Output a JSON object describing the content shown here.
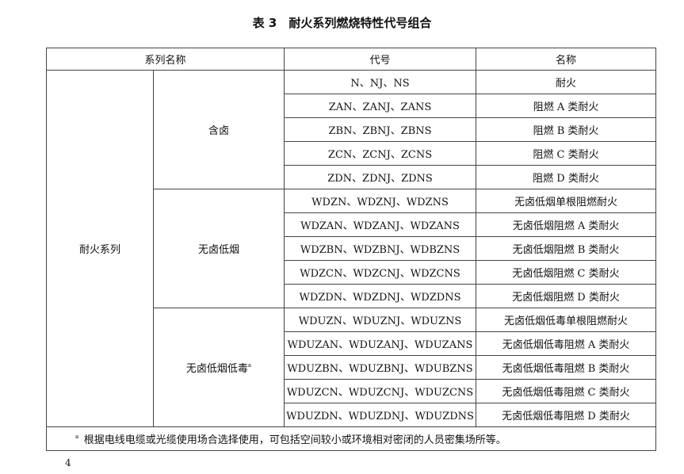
{
  "title": "表 3　耐火系列燃烧特性代号组合",
  "table": {
    "header": [
      "系列名称",
      "代号",
      "名称"
    ],
    "series_name": "耐火系列",
    "groups": [
      {
        "name": "含卤",
        "rows": [
          [
            "N、NJ、NS",
            "耐火"
          ],
          [
            "ZAN、ZANJ、ZANS",
            "阻燃 A 类耐火"
          ],
          [
            "ZBN、ZBNJ、ZBNS",
            "阻燃 B 类耐火"
          ],
          [
            "ZCN、ZCNJ、ZCNS",
            "阻燃 C 类耐火"
          ],
          [
            "ZDN、ZDNJ、ZDNS",
            "阻燃 D 类耐火"
          ]
        ]
      },
      {
        "name": "无卤低烟",
        "rows": [
          [
            "WDZN、WDZNJ、WDZNS",
            "无卤低烟单根阻燃耐火"
          ],
          [
            "WDZAN、WDZANJ、WDZANS",
            "无卤低烟阻燃 A 类耐火"
          ],
          [
            "WDZBN、WDZBNJ、WDBZNS",
            "无卤低烟阻燃 B 类耐火"
          ],
          [
            "WDZCN、WDZCNJ、WDZCNS",
            "无卤低烟阻燃 C 类耐火"
          ],
          [
            "WDZDN、WDZDNJ、WDZDNS",
            "无卤低烟阻燃 D 类耐火"
          ]
        ]
      },
      {
        "name": "无卤低烟低毒",
        "marker": "a",
        "rows": [
          [
            "WDUZN、WDUZNJ、WDUZNS",
            "无卤低烟低毒单根阻燃耐火"
          ],
          [
            "WDUZAN、WDUZANJ、WDUZANS",
            "无卤低烟低毒阻燃 A 类耐火"
          ],
          [
            "WDUZBN、WDUZBNJ、WDUBZNS",
            "无卤低烟低毒阻燃 B 类耐火"
          ],
          [
            "WDUZCN、WDUZCNJ、WDUZCNS",
            "无卤低烟低毒阻燃 C 类耐火"
          ],
          [
            "WDUZDN、WDUZDNJ、WDUZDNS",
            "无卤低烟低毒阻燃 D 类耐火"
          ]
        ]
      }
    ],
    "footnote": {
      "marker": "a",
      "text": "根据电线电缆或光缆使用场合选择使用，可包括空间较小或环境相对密闭的人员密集场所等。"
    }
  },
  "page_number": "4"
}
